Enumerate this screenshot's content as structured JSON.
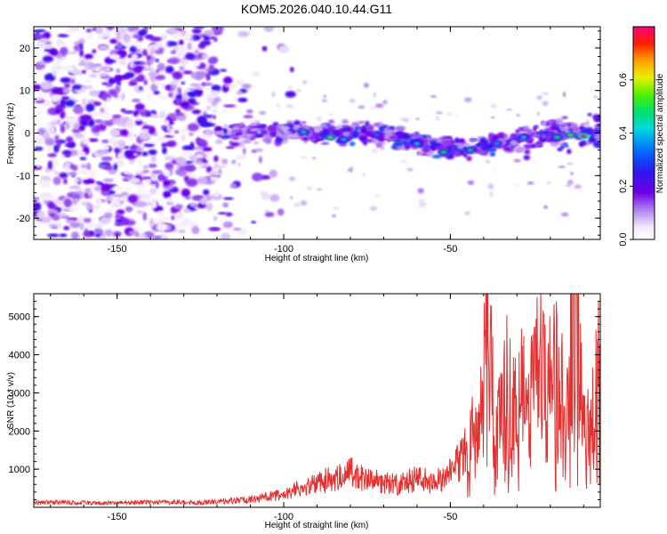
{
  "title": "KOM5.2026.040.10.44.G11",
  "colors": {
    "snr_line": "#e53030",
    "spectro_base": "#ffffff"
  },
  "chart_data": [
    {
      "type": "heatmap",
      "name": "spectrogram",
      "xlabel": "Height of straight line (km)",
      "ylabel": "Frequency (Hz)",
      "xlim": [
        -175,
        -5
      ],
      "ylim": [
        -25,
        25
      ],
      "x_ticks": [
        -150,
        -100,
        -50
      ],
      "x_tick_labels": [
        "-150",
        "-100",
        "-50"
      ],
      "y_ticks": [
        20,
        10,
        0,
        -10,
        -20
      ],
      "y_tick_labels": [
        "20",
        "10",
        "0",
        "-10",
        "-20"
      ],
      "colorbar": {
        "label": "Normalized spectral amplitude",
        "range": [
          0,
          0.8
        ],
        "ticks": [
          0,
          0.2,
          0.4,
          0.6
        ],
        "tick_labels": [
          "0.0",
          "0.2",
          "0.4",
          "0.6"
        ],
        "colormap": "rainbow (purple-blue-cyan-green-yellow-red)"
      },
      "features": [
        {
          "region": "x -175 to -120",
          "description": "broadband low-amplitude noise across all frequencies"
        },
        {
          "region": "x -120 to -5",
          "description": "narrow band near 0 Hz, drifting to about -5 Hz near -50 km, peak near -10 km"
        }
      ]
    },
    {
      "type": "line",
      "name": "snr",
      "xlabel": "Height of straight line (km)",
      "ylabel": "SNR (10 * v/v)",
      "xlim": [
        -175,
        -5
      ],
      "ylim": [
        0,
        5600
      ],
      "x_ticks": [
        -150,
        -100,
        -50
      ],
      "x_tick_labels": [
        "-150",
        "-100",
        "-50"
      ],
      "y_ticks": [
        1000,
        2000,
        3000,
        4000,
        5000
      ],
      "y_tick_labels": [
        "1000",
        "2000",
        "3000",
        "4000",
        "5000"
      ],
      "series": [
        {
          "name": "SNR",
          "x": [
            -175,
            -165,
            -155,
            -145,
            -135,
            -125,
            -115,
            -108,
            -100,
            -95,
            -90,
            -85,
            -80,
            -75,
            -70,
            -65,
            -60,
            -55,
            -50,
            -47,
            -44,
            -41,
            -39,
            -37,
            -35,
            -33,
            -31,
            -29,
            -27,
            -25,
            -23,
            -21,
            -19,
            -17,
            -15,
            -13,
            -12,
            -11,
            -10,
            -9,
            -8,
            -7,
            -6,
            -5
          ],
          "values": [
            120,
            130,
            110,
            125,
            140,
            120,
            180,
            220,
            350,
            520,
            600,
            800,
            900,
            700,
            650,
            600,
            750,
            650,
            900,
            1200,
            1700,
            2100,
            5000,
            2400,
            2300,
            3200,
            2600,
            3300,
            2500,
            3100,
            3700,
            2600,
            3700,
            2900,
            2800,
            4600,
            5500,
            3400,
            2100,
            1700,
            3100,
            3800,
            3300,
            3600
          ]
        }
      ]
    }
  ]
}
